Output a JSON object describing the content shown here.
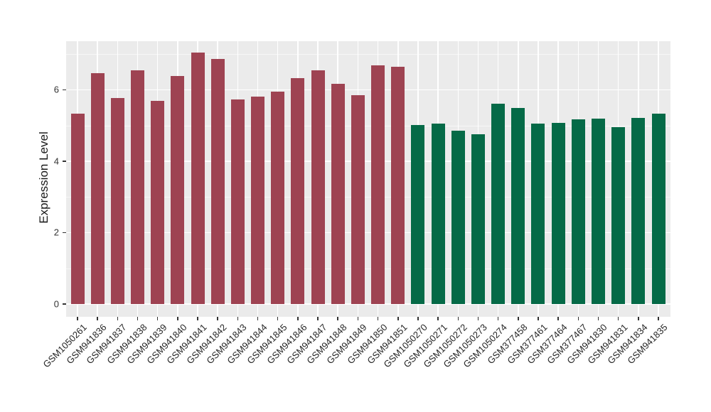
{
  "figure": {
    "background": "#FFFFFF",
    "panel_background": "#EBEBEB",
    "gridline_color": "#FFFFFF",
    "tick_color": "#333333",
    "axis_text_color": "#262626"
  },
  "chart_data": {
    "type": "bar",
    "title": "",
    "xlabel": "",
    "ylabel": "Expression Level",
    "legend": "none",
    "grid": "on",
    "ylim": [
      -0.36,
      7.36
    ],
    "y_ticks": [
      0,
      2,
      4,
      6
    ],
    "y_minor_ticks": [
      1,
      3,
      5,
      7
    ],
    "categories": [
      "GSM1050261",
      "GSM941836",
      "GSM941837",
      "GSM941838",
      "GSM941839",
      "GSM941840",
      "GSM941841",
      "GSM941842",
      "GSM941843",
      "GSM941844",
      "GSM941845",
      "GSM941846",
      "GSM941847",
      "GSM941848",
      "GSM941849",
      "GSM941850",
      "GSM941851",
      "GSM1050270",
      "GSM1050271",
      "GSM1050272",
      "GSM1050273",
      "GSM1050274",
      "GSM377458",
      "GSM377461",
      "GSM377464",
      "GSM377467",
      "GSM941830",
      "GSM941831",
      "GSM941834",
      "GSM941835"
    ],
    "values": [
      5.34,
      6.46,
      5.77,
      6.55,
      5.69,
      6.39,
      7.05,
      6.87,
      5.73,
      5.81,
      5.95,
      6.33,
      6.55,
      6.17,
      5.85,
      6.68,
      6.65,
      5.02,
      5.06,
      4.85,
      4.75,
      5.61,
      5.48,
      5.05,
      5.08,
      5.17,
      5.19,
      4.96,
      5.21,
      5.33
    ],
    "bar_groups": [
      "group1",
      "group1",
      "group1",
      "group1",
      "group1",
      "group1",
      "group1",
      "group1",
      "group1",
      "group1",
      "group1",
      "group1",
      "group1",
      "group1",
      "group1",
      "group1",
      "group1",
      "group2",
      "group2",
      "group2",
      "group2",
      "group2",
      "group2",
      "group2",
      "group2",
      "group2",
      "group2",
      "group2",
      "group2",
      "group2"
    ],
    "group_colors": {
      "group1": "#9E4352",
      "group2": "#056A47"
    }
  }
}
